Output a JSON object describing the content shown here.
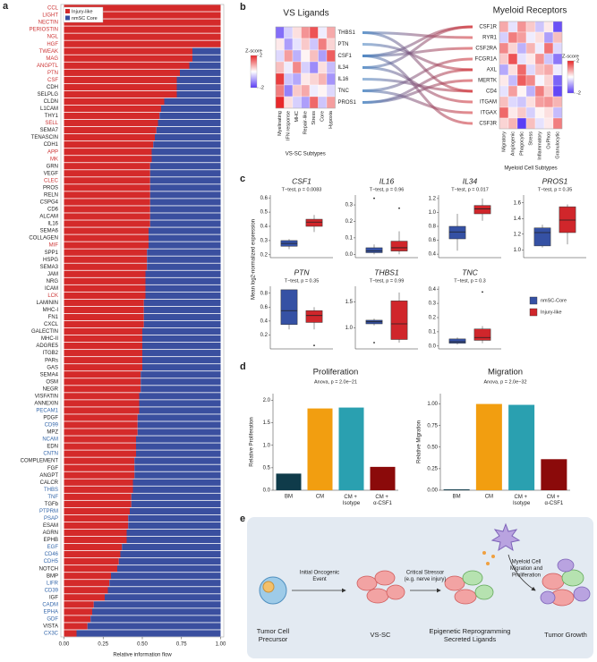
{
  "panel_labels": [
    "a",
    "b",
    "c",
    "d",
    "e"
  ],
  "chart_data": [
    {
      "type": "bar",
      "orientation": "horizontal",
      "stacked": true,
      "categories": [
        "CCL",
        "LIGHT",
        "NECTIN",
        "PERIOSTIN",
        "NGL",
        "HGF",
        "TWEAK",
        "MAG",
        "ANGPTL",
        "PTN",
        "CSF",
        "CDH",
        "SELPLG",
        "CLDN",
        "L1CAM",
        "THY1",
        "SELL",
        "SEMA7",
        "TENASCIN",
        "CDH1",
        "APP",
        "MK",
        "GRN",
        "VEGF",
        "CLEC",
        "PROS",
        "RELN",
        "CSPG4",
        "CD6",
        "ALCAM",
        "IL16",
        "SEMA6",
        "COLLAGEN",
        "MIF",
        "SPP1",
        "HSPG",
        "SEMA3",
        "JAM",
        "NRG",
        "ICAM",
        "LCK",
        "LAMININ",
        "MHC-I",
        "FN1",
        "CXCL",
        "GALECTIN",
        "MHC-II",
        "ADGRE5",
        "ITGB2",
        "PARs",
        "GAS",
        "SEMA4",
        "OSM",
        "NEGR",
        "VISFATIN",
        "ANNEXIN",
        "PECAM1",
        "PDGF",
        "CD99",
        "MPZ",
        "NCAM",
        "EDN",
        "CNTN",
        "COMPLEMENT",
        "FGF",
        "ANGPT",
        "CALCR",
        "THBS",
        "TNF",
        "TGFb",
        "PTPRM",
        "PSAP",
        "ESAM",
        "AGRN",
        "EPHB",
        "EGF",
        "CD46",
        "CDH5",
        "NOTCH",
        "BMP",
        "LIFR",
        "CD39",
        "IGF",
        "CADM",
        "EPHA",
        "GDF",
        "VISTA",
        "CX3C"
      ],
      "category_colors": [
        "#c33",
        "#c33",
        "#c33",
        "#c33",
        "#c33",
        "#c33",
        "#c33",
        "#c33",
        "#c33",
        "#c33",
        "#c33",
        "#222",
        "#222",
        "#222",
        "#222",
        "#222",
        "#c33",
        "#222",
        "#222",
        "#222",
        "#c33",
        "#c33",
        "#222",
        "#222",
        "#c33",
        "#222",
        "#222",
        "#222",
        "#222",
        "#222",
        "#222",
        "#222",
        "#222",
        "#c33",
        "#222",
        "#222",
        "#222",
        "#222",
        "#222",
        "#222",
        "#c33",
        "#222",
        "#222",
        "#222",
        "#222",
        "#222",
        "#222",
        "#222",
        "#222",
        "#222",
        "#222",
        "#222",
        "#222",
        "#222",
        "#222",
        "#222",
        "#36a",
        "#222",
        "#36a",
        "#222",
        "#36a",
        "#222",
        "#36a",
        "#222",
        "#222",
        "#222",
        "#222",
        "#36a",
        "#36a",
        "#222",
        "#36a",
        "#36a",
        "#222",
        "#222",
        "#222",
        "#36a",
        "#36a",
        "#36a",
        "#222",
        "#222",
        "#36a",
        "#36a",
        "#222",
        "#36a",
        "#36a",
        "#36a",
        "#222",
        "#36a"
      ],
      "series": [
        {
          "name": "Injury-like",
          "color": "#d42a2a",
          "values": [
            1,
            1,
            1,
            1,
            1,
            1,
            0.82,
            0.82,
            0.8,
            0.74,
            0.72,
            0.72,
            0.72,
            0.64,
            0.62,
            0.61,
            0.6,
            0.59,
            0.58,
            0.57,
            0.56,
            0.56,
            0.55,
            0.55,
            0.55,
            0.55,
            0.55,
            0.55,
            0.55,
            0.55,
            0.55,
            0.54,
            0.54,
            0.54,
            0.53,
            0.53,
            0.53,
            0.52,
            0.52,
            0.52,
            0.52,
            0.51,
            0.51,
            0.51,
            0.51,
            0.5,
            0.5,
            0.5,
            0.5,
            0.5,
            0.5,
            0.49,
            0.49,
            0.49,
            0.48,
            0.48,
            0.48,
            0.47,
            0.47,
            0.47,
            0.46,
            0.46,
            0.46,
            0.45,
            0.45,
            0.45,
            0.44,
            0.44,
            0.43,
            0.43,
            0.42,
            0.41,
            0.41,
            0.4,
            0.4,
            0.37,
            0.36,
            0.35,
            0.34,
            0.3,
            0.29,
            0.28,
            0.26,
            0.19,
            0.18,
            0.17,
            0.15,
            0.08
          ]
        },
        {
          "name": "nmSC Core",
          "color": "#3a4f9f",
          "values": [
            0,
            0,
            0,
            0,
            0,
            0,
            0.18,
            0.18,
            0.2,
            0.26,
            0.28,
            0.28,
            0.28,
            0.36,
            0.38,
            0.39,
            0.4,
            0.41,
            0.42,
            0.43,
            0.44,
            0.44,
            0.45,
            0.45,
            0.45,
            0.45,
            0.45,
            0.45,
            0.45,
            0.45,
            0.45,
            0.46,
            0.46,
            0.46,
            0.47,
            0.47,
            0.47,
            0.48,
            0.48,
            0.48,
            0.48,
            0.49,
            0.49,
            0.49,
            0.49,
            0.5,
            0.5,
            0.5,
            0.5,
            0.5,
            0.5,
            0.51,
            0.51,
            0.51,
            0.52,
            0.52,
            0.52,
            0.53,
            0.53,
            0.53,
            0.54,
            0.54,
            0.54,
            0.55,
            0.55,
            0.55,
            0.56,
            0.56,
            0.57,
            0.57,
            0.58,
            0.59,
            0.59,
            0.6,
            0.6,
            0.63,
            0.64,
            0.65,
            0.66,
            0.7,
            0.71,
            0.72,
            0.74,
            0.81,
            0.82,
            0.83,
            0.85,
            0.92
          ]
        }
      ],
      "xlabel": "Relative information flow",
      "xlim": [
        -0.02,
        1.02
      ],
      "xticks": [
        {
          "value": 0,
          "label": "0.00"
        },
        0.25,
        {
          "value": 0.5,
          "label": "0.50"
        },
        0.75,
        {
          "value": 1,
          "label": "1.00"
        }
      ],
      "legend": "upper left"
    },
    {
      "type": "heatmap",
      "title": "VS Ligands",
      "xlabel": "VS-SC Subtypes",
      "row_labels": "right",
      "colorbar": "left",
      "rows": [
        "THBS1",
        "PTN",
        "CSF1",
        "IL34",
        "IL16",
        "TNC",
        "PROS1"
      ],
      "columns": [
        "Myelinating",
        "IFN response",
        "MHC",
        "Repair-like",
        "Stress",
        "Core",
        "Hypoxia"
      ],
      "z": [
        [
          -1.5,
          -0.5,
          0.3,
          1.0,
          1.6,
          -0.2,
          0.8
        ],
        [
          0.2,
          -1.0,
          -0.3,
          0.5,
          -0.6,
          1.2,
          0.4
        ],
        [
          -0.4,
          0.9,
          -0.8,
          0.1,
          0.6,
          -1.0,
          1.5
        ],
        [
          0.6,
          -0.2,
          1.1,
          -0.5,
          -1.2,
          0.3,
          -0.7
        ],
        [
          1.8,
          -0.6,
          -0.9,
          0.2,
          0.4,
          0.7,
          -1.1
        ],
        [
          1.2,
          -1.3,
          0.5,
          0.8,
          -0.2,
          0.1,
          -0.4
        ],
        [
          2.0,
          0.3,
          -0.5,
          -1.0,
          1.4,
          -0.6,
          0.9
        ]
      ],
      "colorbar_title": "Z-score",
      "zlim": [
        -2,
        2
      ],
      "zticks": [
        2,
        -2
      ],
      "colormap": [
        "#5b3df5",
        "#ffffff",
        "#e8282a"
      ]
    },
    {
      "type": "heatmap",
      "title": "Myeloid Receptors",
      "xlabel": "Myeloid Cell Subtypes",
      "row_labels": "left",
      "colorbar": "right",
      "rows": [
        "CSF1R",
        "RYR1",
        "CSF2RA",
        "FCGR1A",
        "AXL",
        "MERTK",
        "CD4",
        "ITGAM",
        "ITGAX",
        "CSF3R"
      ],
      "columns": [
        "Migratory",
        "Angiogenic",
        "Phagocytic",
        "Stress",
        "Inflammatory",
        "OxPhos",
        "Granulocytic"
      ],
      "z": [
        [
          0.8,
          -0.3,
          1.0,
          0.5,
          -0.6,
          0.2,
          -1.8
        ],
        [
          -0.5,
          1.2,
          0.9,
          -0.2,
          0.3,
          -1.0,
          0.6
        ],
        [
          1.1,
          0.4,
          -0.8,
          0.7,
          -0.2,
          1.3,
          -0.4
        ],
        [
          0.5,
          1.6,
          -0.3,
          0.2,
          1.0,
          -0.6,
          -1.4
        ],
        [
          -0.9,
          0.3,
          1.4,
          -0.4,
          0.6,
          0.8,
          -0.2
        ],
        [
          0.2,
          -0.7,
          1.5,
          1.1,
          -0.1,
          0.4,
          -1.6
        ],
        [
          -0.3,
          0.9,
          0.1,
          -0.8,
          1.2,
          0.5,
          -1.9
        ],
        [
          0.6,
          -0.4,
          -0.6,
          0.3,
          0.9,
          1.0,
          0.7
        ],
        [
          1.4,
          0.2,
          0.5,
          -0.5,
          0.1,
          0.3,
          -0.7
        ],
        [
          0.4,
          0.7,
          -2.0,
          0.6,
          -0.3,
          0.2,
          1.2
        ]
      ],
      "colorbar_title": "Z-score",
      "zlim": [
        -2,
        2
      ],
      "zticks": [
        2,
        -2
      ],
      "colormap": [
        "#5b3df5",
        "#ffffff",
        "#e8282a"
      ]
    },
    {
      "type": "box",
      "title": "CSF1",
      "subtitle": "T−test, p = 0.0083",
      "ylim": [
        0.18,
        0.62
      ],
      "yticks": [
        0.2,
        0.3,
        0.4,
        0.5,
        0.6
      ],
      "boxes": [
        {
          "min": 0.24,
          "q1": 0.26,
          "median": 0.28,
          "q3": 0.3,
          "max": 0.31
        },
        {
          "min": 0.36,
          "q1": 0.4,
          "median": 0.43,
          "q3": 0.45,
          "max": 0.48
        }
      ]
    },
    {
      "type": "box",
      "title": "IL16",
      "subtitle": "T−test, p = 0.96",
      "ylim": [
        -0.02,
        0.36
      ],
      "yticks": [
        {
          "value": 0,
          "label": "0.0"
        },
        0.1,
        0.2,
        0.3
      ],
      "boxes": [
        {
          "min": 0.0,
          "q1": 0.01,
          "median": 0.02,
          "q3": 0.04,
          "max": 0.06,
          "outliers": [
            0.34
          ]
        },
        {
          "min": 0.0,
          "q1": 0.02,
          "median": 0.04,
          "q3": 0.08,
          "max": 0.14,
          "outliers": [
            0.28
          ]
        }
      ]
    },
    {
      "type": "box",
      "title": "IL34",
      "subtitle": "T−test, p = 0.017",
      "ylim": [
        0.35,
        1.25
      ],
      "yticks": [
        0.4,
        0.6,
        0.8,
        {
          "value": 1,
          "label": "1.0"
        },
        1.2
      ],
      "boxes": [
        {
          "min": 0.45,
          "q1": 0.62,
          "median": 0.72,
          "q3": 0.8,
          "max": 0.98
        },
        {
          "min": 0.88,
          "q1": 0.98,
          "median": 1.05,
          "q3": 1.1,
          "max": 1.2
        }
      ]
    },
    {
      "type": "box",
      "title": "PROS1",
      "subtitle": "T−test, p = 0.35",
      "ylim": [
        0.9,
        1.7
      ],
      "yticks": [
        {
          "value": 1,
          "label": "1.0"
        },
        1.2,
        1.4,
        1.6
      ],
      "boxes": [
        {
          "min": 1.03,
          "q1": 1.05,
          "median": 1.22,
          "q3": 1.28,
          "max": 1.32
        },
        {
          "min": 1.07,
          "q1": 1.22,
          "median": 1.38,
          "q3": 1.55,
          "max": 1.58
        }
      ]
    },
    {
      "type": "box",
      "title": "PTN",
      "subtitle": "T−test, p = 0.35",
      "ylim": [
        0,
        0.9
      ],
      "yticks": [
        0.2,
        0.4,
        0.6,
        0.8
      ],
      "boxes": [
        {
          "min": 0.28,
          "q1": 0.35,
          "median": 0.55,
          "q3": 0.85,
          "max": 0.85
        },
        {
          "min": 0.28,
          "q1": 0.38,
          "median": 0.48,
          "q3": 0.55,
          "max": 0.6,
          "outliers": [
            0.05
          ]
        }
      ]
    },
    {
      "type": "box",
      "title": "THBS1",
      "subtitle": "T−test, p = 0.99",
      "ylim": [
        0.6,
        1.8
      ],
      "yticks": [
        {
          "value": 1,
          "label": "1.0"
        },
        1.5
      ],
      "boxes": [
        {
          "min": 1.05,
          "q1": 1.08,
          "median": 1.12,
          "q3": 1.15,
          "max": 1.18,
          "outliers": [
            0.72
          ]
        },
        {
          "min": 0.72,
          "q1": 0.78,
          "median": 1.08,
          "q3": 1.52,
          "max": 1.68
        }
      ]
    },
    {
      "type": "box",
      "title": "TNC",
      "subtitle": "T−test, p = 0.3",
      "ylim": [
        -0.02,
        0.42
      ],
      "yticks": [
        {
          "value": 0,
          "label": "0.0"
        },
        0.1,
        0.2,
        0.3,
        0.4
      ],
      "boxes": [
        {
          "min": 0.01,
          "q1": 0.02,
          "median": 0.03,
          "q3": 0.05,
          "max": 0.06
        },
        {
          "min": 0.02,
          "q1": 0.04,
          "median": 0.06,
          "q3": 0.12,
          "max": 0.14,
          "outliers": [
            0.38
          ]
        }
      ]
    },
    {
      "type": "bar",
      "title": "Proliferation",
      "subtitle": "Anova, p = 2.0e−21",
      "ylabel": "Relative Proliferation",
      "categories": [
        "BM",
        "CM",
        "CM + Isotype",
        "CM + α-CSF1"
      ],
      "values": [
        0.37,
        1.82,
        1.84,
        0.52
      ],
      "colors": [
        "#0f3b4a",
        "#f29e10",
        "#2aa0b0",
        "#8b0a0a"
      ],
      "ylim": [
        0,
        2.15
      ],
      "yticks": [
        {
          "value": 0,
          "label": "0.0"
        },
        0.5,
        {
          "value": 1,
          "label": "1.0"
        },
        1.5,
        {
          "value": 2,
          "label": "2.0"
        }
      ]
    },
    {
      "type": "bar",
      "title": "Migration",
      "subtitle": "Anova, p = 2.0e−32",
      "ylabel": "Relative Migration",
      "categories": [
        "BM",
        "CM",
        "CM + Isotype",
        "CM + α-CSF1"
      ],
      "values": [
        0.01,
        1.0,
        0.99,
        0.36
      ],
      "colors": [
        "#0f3b4a",
        "#f29e10",
        "#2aa0b0",
        "#8b0a0a"
      ],
      "ylim": [
        0,
        1.12
      ],
      "yticks": [
        {
          "value": 0,
          "label": "0.00"
        },
        0.25,
        {
          "value": 0.5,
          "label": "0.50"
        },
        0.75,
        {
          "value": 1,
          "label": "1.00"
        }
      ]
    }
  ],
  "box_ylabel": "Mean log2-normalized expression",
  "box_legend": {
    "series": [
      {
        "name": "nmSC-Core",
        "color": "#3551a4"
      },
      {
        "name": "Injury-like",
        "color": "#d0262b"
      }
    ]
  },
  "diagram": {
    "labels": [
      {
        "lines": [
          "Tumor Cell",
          "Precursor"
        ]
      },
      {
        "lines": [
          "Initial Oncogenic",
          "Event"
        ]
      },
      {
        "lines": [
          "VS-SC"
        ]
      },
      {
        "lines": [
          "Critical Stressor",
          "(e.g. nerve injury)"
        ]
      },
      {
        "lines": [
          "Epigenetic Reprogramming",
          "Secreted Ligands"
        ]
      },
      {
        "lines": [
          "Myeloid Cell",
          "Migration and",
          "Proliferation"
        ]
      },
      {
        "lines": [
          "Tumor Growth"
        ]
      }
    ]
  }
}
